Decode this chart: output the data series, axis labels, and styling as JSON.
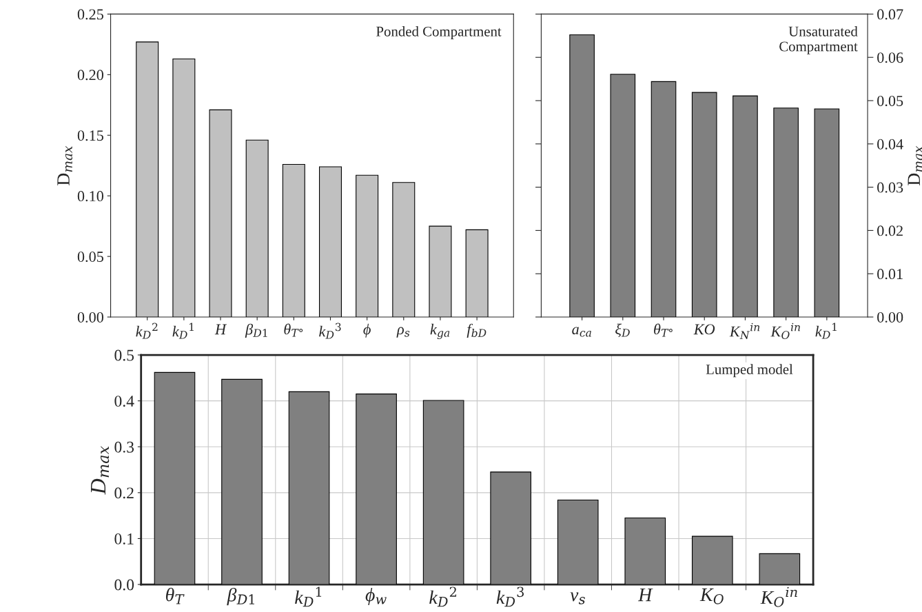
{
  "chart_data": [
    {
      "type": "bar",
      "categories": [
        "k$_{D}$$^{2}$",
        "k$_{D}$$^{1}$",
        "H",
        "β$_{D1}$",
        "θ$_{T°}$",
        "k$_{D}$$^{3}$",
        "ϕ",
        "ρ$_{s}$",
        "k$_{ga}$",
        "f$_{bD}$"
      ],
      "values": [
        0.227,
        0.213,
        0.171,
        0.146,
        0.126,
        0.124,
        0.117,
        0.111,
        0.075,
        0.072
      ],
      "color": "#c0c0c0",
      "ylabel": "D$_{max}$",
      "ylim": [
        0,
        0.25
      ],
      "yticks": [
        {
          "value": 0,
          "label": "0.00"
        },
        0.05,
        {
          "value": 0.1,
          "label": "0.10"
        },
        0.15,
        {
          "value": 0.2,
          "label": "0.20"
        },
        0.25
      ],
      "annotations": [
        "Ponded Compartment"
      ],
      "grid": false
    },
    {
      "type": "bar",
      "categories": [
        "a$_{ca}$",
        "ξ$_{D}$",
        "θ$_{T°}$",
        "KO",
        "K$_{N}$$^{in}$",
        "K$_{O}$$^{in}$",
        "k$_{D}$$^{1}$"
      ],
      "values": [
        0.0652,
        0.0561,
        0.0544,
        0.0519,
        0.0511,
        0.0483,
        0.0481
      ],
      "color": "#808080",
      "ylabel": "D$_{max}$",
      "ylim": [
        0,
        0.07
      ],
      "yticks": [
        {
          "value": 0,
          "label": "0.00"
        },
        0.01,
        0.02,
        0.03,
        0.04,
        0.05,
        0.06,
        0.07
      ],
      "annotations": [
        "Unsaturated\nCompartment"
      ],
      "grid": false
    },
    {
      "type": "bar",
      "categories": [
        "θ$_{T}$",
        "β$_{D1}$",
        "k$_{D}$$^{1}$",
        "ϕ$_{w}$",
        "k$_{D}$$^{2}$",
        "k$_{D}$$^{3}$",
        "ν$_{s}$",
        "H",
        "K$_{O}$",
        "K$_{O}$$^{in}$"
      ],
      "values": [
        0.462,
        0.447,
        0.42,
        0.415,
        0.401,
        0.245,
        0.184,
        0.145,
        0.105,
        0.067
      ],
      "color": "#808080",
      "ylabel": "D$_{max}$",
      "ylim": [
        0,
        0.5
      ],
      "yticks": [
        {
          "value": 0,
          "label": "0.0"
        },
        0.1,
        0.2,
        0.3,
        0.4,
        0.5
      ],
      "annotations": [
        "Lumped model"
      ],
      "grid": true
    }
  ]
}
